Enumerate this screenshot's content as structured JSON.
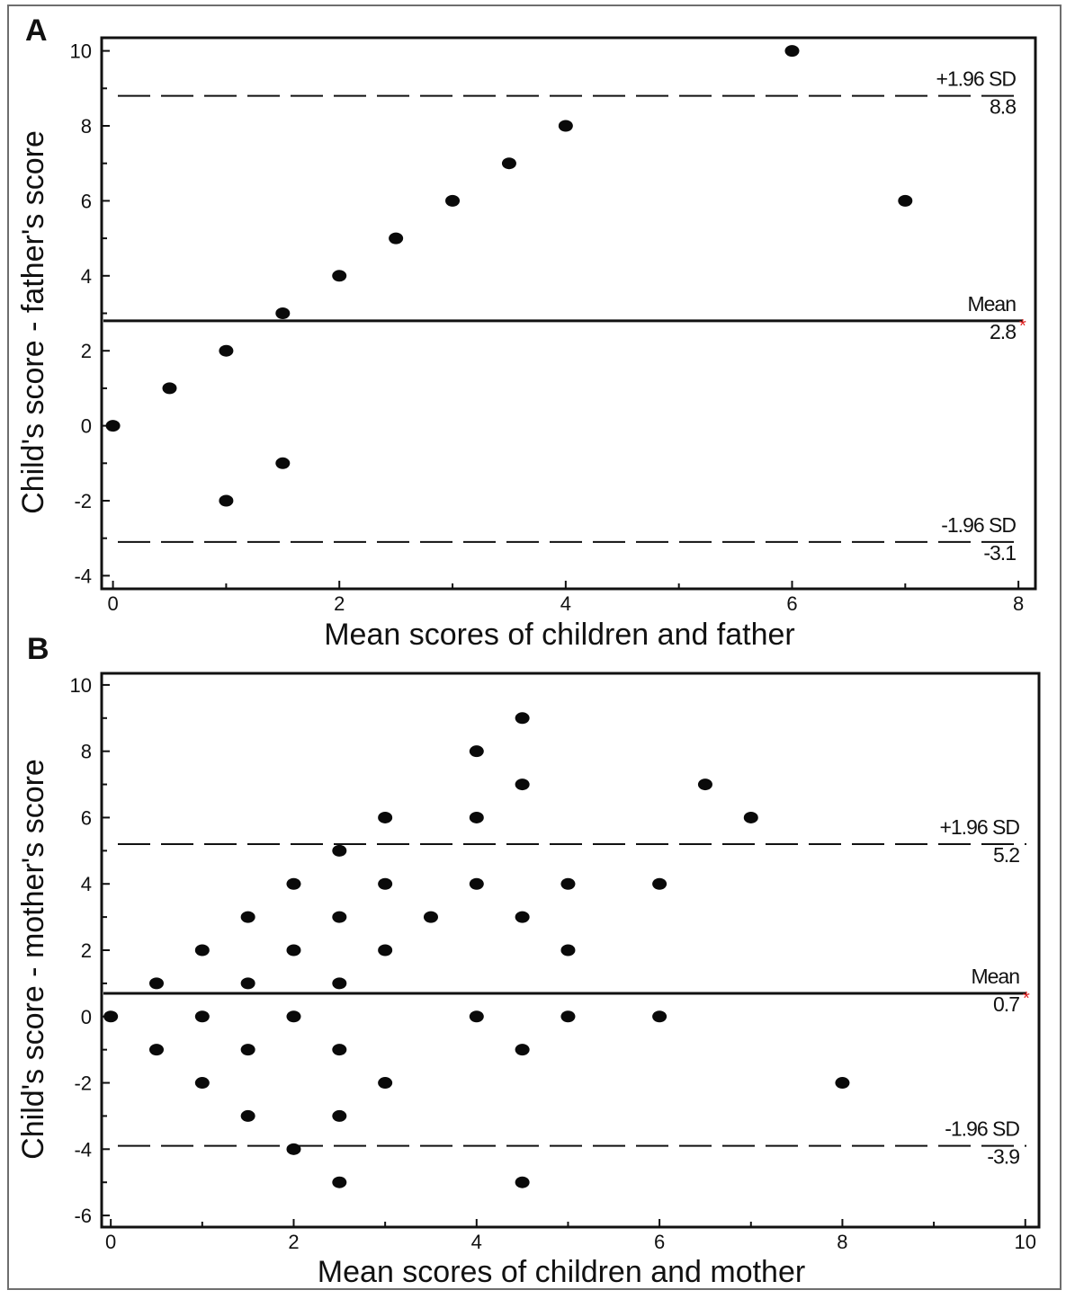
{
  "chart_data": [
    {
      "type": "scatter",
      "panel_label": "A",
      "xlabel": "Mean scores of children and father",
      "ylabel": "Child's score - father's score",
      "xlim": [
        -0.1,
        8.15
      ],
      "ylim": [
        -4.35,
        10.35
      ],
      "xticks": [
        0,
        2,
        4,
        6,
        8
      ],
      "yticks": [
        -4,
        -2,
        0,
        2,
        4,
        6,
        8,
        10
      ],
      "x": [
        0,
        0.5,
        1,
        1,
        1.5,
        1.5,
        2,
        2.5,
        3,
        3.5,
        4,
        6,
        7
      ],
      "y": [
        0,
        1,
        2,
        -2,
        3,
        -1,
        4,
        5,
        6,
        7,
        8,
        10,
        6
      ],
      "reference_lines": [
        {
          "name": "+1.96 SD",
          "value_label": "8.8",
          "y": 8.8,
          "style": "dashed"
        },
        {
          "name": "Mean",
          "value_label": "2.8",
          "y": 2.8,
          "style": "solid",
          "marker": "*"
        },
        {
          "name": "-1.96 SD",
          "value_label": "-3.1",
          "y": -3.1,
          "style": "dashed"
        }
      ],
      "grid": false
    },
    {
      "type": "scatter",
      "panel_label": "B",
      "xlabel": "Mean scores of children and mother",
      "ylabel": "Child's score - mother's score",
      "xlim": [
        -0.1,
        10.15
      ],
      "ylim": [
        -6.35,
        10.35
      ],
      "xticks": [
        0,
        2,
        4,
        6,
        8,
        10
      ],
      "yticks": [
        -6,
        -4,
        -2,
        0,
        2,
        4,
        6,
        8,
        10
      ],
      "x": [
        0,
        0.5,
        0.5,
        1,
        1,
        1,
        1.5,
        1.5,
        1.5,
        1.5,
        2,
        2,
        2,
        2,
        2.5,
        2.5,
        2.5,
        2.5,
        2.5,
        2.5,
        3,
        3,
        3,
        3,
        3.5,
        4,
        4,
        4,
        4,
        4.5,
        4.5,
        4.5,
        4.5,
        4.5,
        5,
        5,
        5,
        6,
        6,
        6.5,
        7,
        8
      ],
      "y": [
        0,
        1,
        -1,
        2,
        0,
        -2,
        3,
        1,
        -1,
        -3,
        4,
        2,
        0,
        -4,
        5,
        3,
        1,
        -1,
        -3,
        -5,
        6,
        4,
        2,
        -2,
        3,
        8,
        6,
        4,
        0,
        9,
        7,
        3,
        -1,
        -5,
        4,
        2,
        0,
        4,
        0,
        7,
        6,
        -2
      ],
      "reference_lines": [
        {
          "name": "+1.96 SD",
          "value_label": "5.2",
          "y": 5.2,
          "style": "dashed"
        },
        {
          "name": "Mean",
          "value_label": "0.7",
          "y": 0.7,
          "style": "solid",
          "marker": "*"
        },
        {
          "name": "-1.96 SD",
          "value_label": "-3.9",
          "y": -3.9,
          "style": "dashed"
        }
      ],
      "grid": false
    }
  ]
}
